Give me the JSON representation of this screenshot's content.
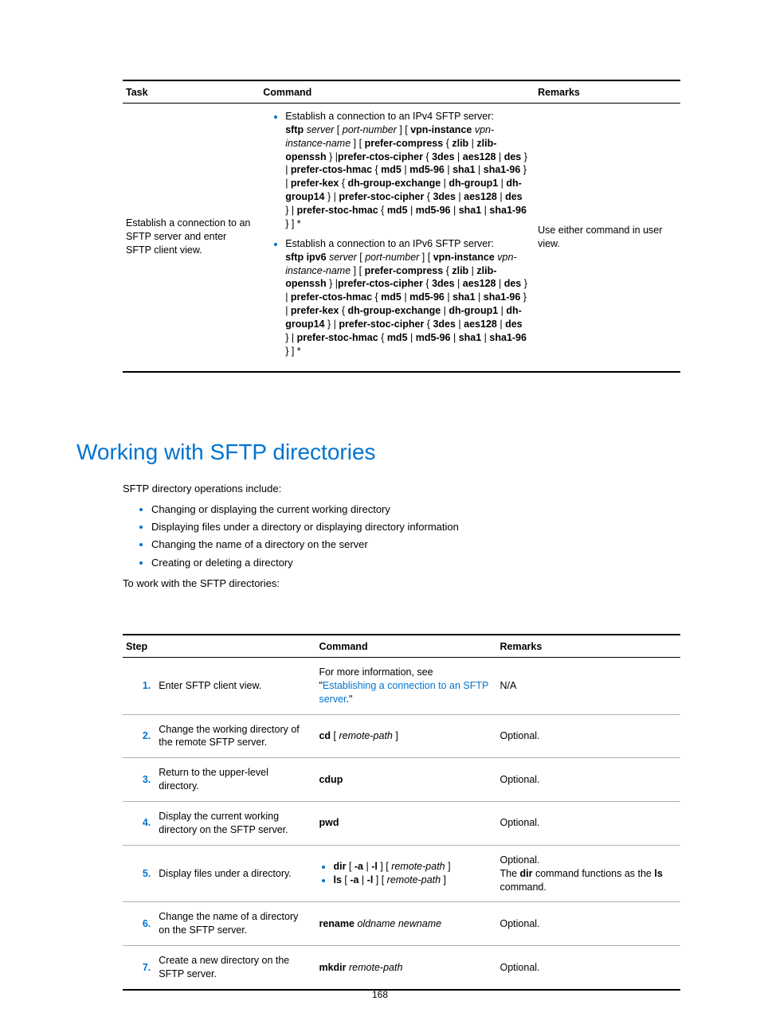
{
  "colors": {
    "accent": "#0073cf",
    "text": "#000000",
    "rule_light": "#b0b0b0",
    "rule_heavy": "#000000",
    "background": "#ffffff"
  },
  "typography": {
    "body_fontsize_pt": 10,
    "heading_fontsize_pt": 21,
    "font_family": "Segoe UI / Helvetica Neue"
  },
  "table1": {
    "headers": {
      "task": "Task",
      "command": "Command",
      "remarks": "Remarks"
    },
    "row": {
      "task": "Establish a connection to an SFTP server and enter SFTP client view.",
      "cmd_items": [
        {
          "lead": "Establish a connection to an IPv4 SFTP server:",
          "syntax_parts": [
            {
              "t": "sftp",
              "b": true
            },
            {
              "t": " "
            },
            {
              "t": "server",
              "i": true
            },
            {
              "t": " [ "
            },
            {
              "t": "port-number",
              "i": true
            },
            {
              "t": " ] [ "
            },
            {
              "t": "vpn-instance",
              "b": true
            },
            {
              "t": " "
            },
            {
              "t": "vpn-instance-name",
              "i": true
            },
            {
              "t": " ] [ "
            },
            {
              "t": "prefer-compress",
              "b": true
            },
            {
              "t": " { "
            },
            {
              "t": "zlib",
              "b": true
            },
            {
              "t": " | "
            },
            {
              "t": "zlib-openssh",
              "b": true
            },
            {
              "t": " } |"
            },
            {
              "t": "prefer-ctos-cipher",
              "b": true
            },
            {
              "t": " { "
            },
            {
              "t": "3des",
              "b": true
            },
            {
              "t": " | "
            },
            {
              "t": "aes128",
              "b": true
            },
            {
              "t": " | "
            },
            {
              "t": "des",
              "b": true
            },
            {
              "t": " } | "
            },
            {
              "t": "prefer-ctos-hmac",
              "b": true
            },
            {
              "t": " { "
            },
            {
              "t": "md5",
              "b": true
            },
            {
              "t": " | "
            },
            {
              "t": "md5-96",
              "b": true
            },
            {
              "t": " | "
            },
            {
              "t": "sha1",
              "b": true
            },
            {
              "t": " | "
            },
            {
              "t": "sha1-96",
              "b": true
            },
            {
              "t": " } | "
            },
            {
              "t": "prefer-kex",
              "b": true
            },
            {
              "t": " { "
            },
            {
              "t": "dh-group-exchange",
              "b": true
            },
            {
              "t": " | "
            },
            {
              "t": "dh-group1",
              "b": true
            },
            {
              "t": " | "
            },
            {
              "t": "dh-group14",
              "b": true
            },
            {
              "t": " } | "
            },
            {
              "t": "prefer-stoc-cipher",
              "b": true
            },
            {
              "t": " { "
            },
            {
              "t": "3des",
              "b": true
            },
            {
              "t": " | "
            },
            {
              "t": "aes128",
              "b": true
            },
            {
              "t": " | "
            },
            {
              "t": "des",
              "b": true
            },
            {
              "t": " } | "
            },
            {
              "t": "prefer-stoc-hmac",
              "b": true
            },
            {
              "t": " { "
            },
            {
              "t": "md5",
              "b": true
            },
            {
              "t": " | "
            },
            {
              "t": "md5-96",
              "b": true
            },
            {
              "t": " | "
            },
            {
              "t": "sha1",
              "b": true
            },
            {
              "t": " | "
            },
            {
              "t": "sha1-96",
              "b": true
            },
            {
              "t": " } ] *"
            }
          ]
        },
        {
          "lead": "Establish a connection to an IPv6 SFTP server:",
          "syntax_parts": [
            {
              "t": "sftp ipv6",
              "b": true
            },
            {
              "t": " "
            },
            {
              "t": "server",
              "i": true
            },
            {
              "t": " [ "
            },
            {
              "t": "port-number",
              "i": true
            },
            {
              "t": " ] [ "
            },
            {
              "t": "vpn-instance",
              "b": true
            },
            {
              "t": " "
            },
            {
              "t": "vpn-instance-name",
              "i": true
            },
            {
              "t": " ] [ "
            },
            {
              "t": "prefer-compress",
              "b": true
            },
            {
              "t": " { "
            },
            {
              "t": "zlib",
              "b": true
            },
            {
              "t": " | "
            },
            {
              "t": "zlib-openssh",
              "b": true
            },
            {
              "t": " } |"
            },
            {
              "t": "prefer-ctos-cipher",
              "b": true
            },
            {
              "t": " { "
            },
            {
              "t": "3des",
              "b": true
            },
            {
              "t": " | "
            },
            {
              "t": "aes128",
              "b": true
            },
            {
              "t": " | "
            },
            {
              "t": "des",
              "b": true
            },
            {
              "t": " } | "
            },
            {
              "t": "prefer-ctos-hmac",
              "b": true
            },
            {
              "t": " { "
            },
            {
              "t": "md5",
              "b": true
            },
            {
              "t": " | "
            },
            {
              "t": "md5-96",
              "b": true
            },
            {
              "t": " | "
            },
            {
              "t": "sha1",
              "b": true
            },
            {
              "t": " | "
            },
            {
              "t": "sha1-96",
              "b": true
            },
            {
              "t": " } | "
            },
            {
              "t": "prefer-kex",
              "b": true
            },
            {
              "t": " { "
            },
            {
              "t": "dh-group-exchange",
              "b": true
            },
            {
              "t": " | "
            },
            {
              "t": "dh-group1",
              "b": true
            },
            {
              "t": " | "
            },
            {
              "t": "dh-group14",
              "b": true
            },
            {
              "t": " } | "
            },
            {
              "t": "prefer-stoc-cipher",
              "b": true
            },
            {
              "t": " { "
            },
            {
              "t": "3des",
              "b": true
            },
            {
              "t": " | "
            },
            {
              "t": "aes128",
              "b": true
            },
            {
              "t": " | "
            },
            {
              "t": "des",
              "b": true
            },
            {
              "t": " } | "
            },
            {
              "t": "prefer-stoc-hmac",
              "b": true
            },
            {
              "t": " { "
            },
            {
              "t": "md5",
              "b": true
            },
            {
              "t": " | "
            },
            {
              "t": "md5-96",
              "b": true
            },
            {
              "t": " | "
            },
            {
              "t": "sha1",
              "b": true
            },
            {
              "t": " | "
            },
            {
              "t": "sha1-96",
              "b": true
            },
            {
              "t": " } ] *"
            }
          ]
        }
      ],
      "remarks": "Use either command in user view."
    }
  },
  "heading": "Working with SFTP directories",
  "intro": {
    "lead": "SFTP directory operations include:",
    "bullets": [
      "Changing or displaying the current working directory",
      "Displaying files under a directory or displaying directory information",
      "Changing the name of a directory on the server",
      "Creating or deleting a directory"
    ],
    "tail": "To work with the SFTP directories:"
  },
  "table2": {
    "headers": {
      "step": "Step",
      "command": "Command",
      "remarks": "Remarks"
    },
    "rows": [
      {
        "num": "1.",
        "desc": "Enter SFTP client view.",
        "cmd_parts": [
          {
            "t": "For more information, see \""
          },
          {
            "t": "Establishing a connection to an SFTP server",
            "link": true
          },
          {
            "t": ".\""
          }
        ],
        "remarks_parts": [
          {
            "t": "N/A"
          }
        ]
      },
      {
        "num": "2.",
        "desc": "Change the working directory of the remote SFTP server.",
        "cmd_parts": [
          {
            "t": "cd",
            "b": true
          },
          {
            "t": " [ "
          },
          {
            "t": "remote-path",
            "i": true
          },
          {
            "t": " ]"
          }
        ],
        "remarks_parts": [
          {
            "t": "Optional."
          }
        ]
      },
      {
        "num": "3.",
        "desc": "Return to the upper-level directory.",
        "cmd_parts": [
          {
            "t": "cdup",
            "b": true
          }
        ],
        "remarks_parts": [
          {
            "t": "Optional."
          }
        ]
      },
      {
        "num": "4.",
        "desc": "Display the current working directory on the SFTP server.",
        "cmd_parts": [
          {
            "t": "pwd",
            "b": true
          }
        ],
        "remarks_parts": [
          {
            "t": "Optional."
          }
        ]
      },
      {
        "num": "5.",
        "desc": "Display files under a directory.",
        "cmd_list": [
          [
            {
              "t": "dir",
              "b": true
            },
            {
              "t": " [ "
            },
            {
              "t": "-a",
              "b": true
            },
            {
              "t": " | "
            },
            {
              "t": "-l",
              "b": true
            },
            {
              "t": " ] [ "
            },
            {
              "t": "remote-path",
              "i": true
            },
            {
              "t": " ]"
            }
          ],
          [
            {
              "t": "ls",
              "b": true
            },
            {
              "t": " [ "
            },
            {
              "t": "-a",
              "b": true
            },
            {
              "t": " | "
            },
            {
              "t": "-l",
              "b": true
            },
            {
              "t": " ] [ "
            },
            {
              "t": "remote-path",
              "i": true
            },
            {
              "t": " ]"
            }
          ]
        ],
        "remarks_parts": [
          {
            "t": "Optional."
          },
          {
            "br": true
          },
          {
            "t": "The "
          },
          {
            "t": "dir",
            "b": true
          },
          {
            "t": " command functions as the "
          },
          {
            "t": "ls",
            "b": true
          },
          {
            "t": " command."
          }
        ]
      },
      {
        "num": "6.",
        "desc": "Change the name of a directory on the SFTP server.",
        "cmd_parts": [
          {
            "t": "rename",
            "b": true
          },
          {
            "t": " "
          },
          {
            "t": "oldname newname",
            "i": true
          }
        ],
        "remarks_parts": [
          {
            "t": "Optional."
          }
        ]
      },
      {
        "num": "7.",
        "desc": "Create a new directory on the SFTP server.",
        "cmd_parts": [
          {
            "t": "mkdir",
            "b": true
          },
          {
            "t": " "
          },
          {
            "t": "remote-path",
            "i": true
          }
        ],
        "remarks_parts": [
          {
            "t": "Optional."
          }
        ]
      }
    ]
  },
  "page_number": "168"
}
